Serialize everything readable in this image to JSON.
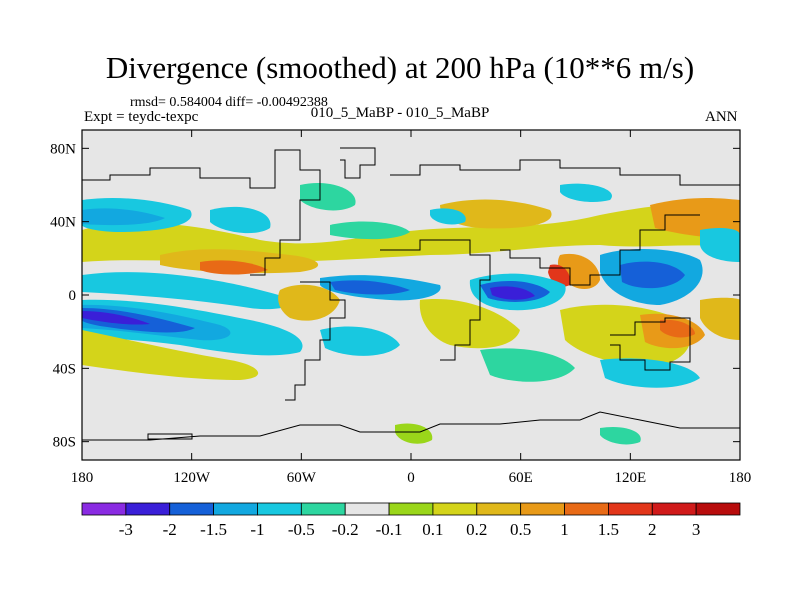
{
  "header": {
    "title": "Divergence (smoothed) at 200 hPa (10**6 m/s)",
    "stats": "rmsd= 0.584004 diff= -0.00492388",
    "experiment": "Expt = teydc-texpc",
    "case_label": "010_5_MaBP - 010_5_MaBP",
    "season": "ANN"
  },
  "chart_data": {
    "type": "heatmap",
    "title": "Divergence (smoothed) at 200 hPa (10**6 m/s)",
    "xlabel": "",
    "ylabel": "",
    "xlim": [
      -180,
      180
    ],
    "ylim": [
      -90,
      90
    ],
    "x_ticks": [
      {
        "value": -180,
        "label": "180"
      },
      {
        "value": -120,
        "label": "120W"
      },
      {
        "value": -60,
        "label": "60W"
      },
      {
        "value": 0,
        "label": "0"
      },
      {
        "value": 60,
        "label": "60E"
      },
      {
        "value": 120,
        "label": "120E"
      },
      {
        "value": 180,
        "label": "180"
      }
    ],
    "y_ticks": [
      {
        "value": 80,
        "label": "80N"
      },
      {
        "value": 40,
        "label": "40N"
      },
      {
        "value": 0,
        "label": "0"
      },
      {
        "value": -40,
        "label": "40S"
      },
      {
        "value": -80,
        "label": "80S"
      }
    ],
    "colorbar": {
      "labels": [
        "-3",
        "-2",
        "-1.5",
        "-1",
        "-0.5",
        "-0.2",
        "-0.1",
        "0.1",
        "0.2",
        "0.5",
        "1",
        "1.5",
        "2",
        "3"
      ],
      "colors": [
        "#8a2be2",
        "#3a1fd8",
        "#1560d8",
        "#12a8e0",
        "#18c8e0",
        "#2dd6a0",
        "#e6e6e6",
        "#9ad61a",
        "#d4d41a",
        "#e0b81a",
        "#e89a18",
        "#e86a16",
        "#e2361a",
        "#d01a1a",
        "#b80c0c"
      ]
    },
    "features": [
      {
        "name": "strong convergence band (SH subtropics)",
        "lon": [
          -180,
          -130
        ],
        "lat": [
          -26,
          -8
        ],
        "value": -2.5
      },
      {
        "name": "convergence band (SH subtropics east)",
        "lon": [
          -130,
          -60
        ],
        "lat": [
          -30,
          -12
        ],
        "value": -1.0
      },
      {
        "name": "strong convergence (Arabian Sea)",
        "lon": [
          40,
          75
        ],
        "lat": [
          -5,
          10
        ],
        "value": -2.5
      },
      {
        "name": "divergence maximum (India)",
        "lon": [
          70,
          90
        ],
        "lat": [
          5,
          20
        ],
        "value": 2.5
      },
      {
        "name": "divergence band (Central America)",
        "lon": [
          -110,
          -80
        ],
        "lat": [
          10,
          20
        ],
        "value": 1.5
      },
      {
        "name": "divergence (South Pacific)",
        "lon": [
          130,
          170
        ],
        "lat": [
          -35,
          -10
        ],
        "value": 1.5
      }
    ]
  }
}
